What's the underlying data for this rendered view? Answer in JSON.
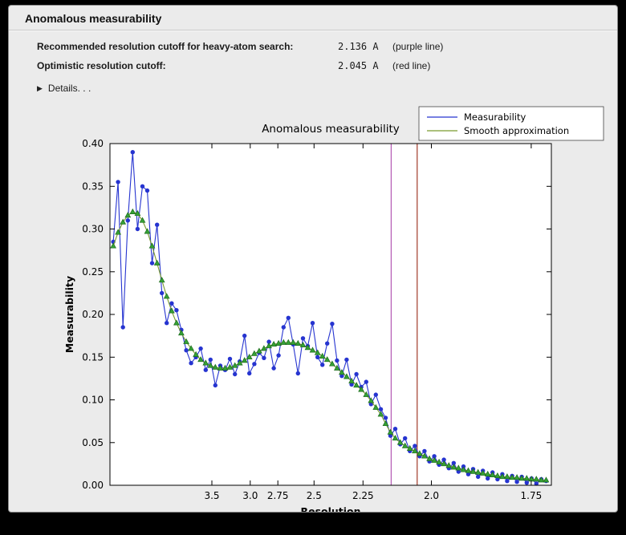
{
  "header": {
    "title": "Anomalous measurability"
  },
  "info": {
    "rows": [
      {
        "label": "Recommended resolution cutoff for heavy-atom search:",
        "value": "2.136 A",
        "note": "(purple line)"
      },
      {
        "label": "Optimistic resolution cutoff:",
        "value": "2.045 A",
        "note": "(red line)"
      }
    ],
    "details_label": "Details. . ."
  },
  "chart_data": {
    "type": "line",
    "title": "Anomalous measurability",
    "xlabel": "Resolution",
    "ylabel": "Measurability",
    "grid": false,
    "legend_position": "upper right",
    "xlim_inv_d_sq": [
      0.0035,
      0.342
    ],
    "ylim": [
      0,
      0.4
    ],
    "x_ticks": {
      "d_values": [
        3.5,
        3.0,
        2.75,
        2.5,
        2.25,
        2.0,
        1.75
      ],
      "labels": [
        "3.5",
        "3.0",
        "2.75",
        "2.5",
        "2.25",
        "2.0",
        "1.75"
      ]
    },
    "y_ticks": {
      "values": [
        0,
        0.05,
        0.1,
        0.15,
        0.2,
        0.25,
        0.3,
        0.35,
        0.4
      ],
      "labels": [
        "0.00",
        "0.05",
        "0.10",
        "0.15",
        "0.20",
        "0.25",
        "0.30",
        "0.35",
        "0.40"
      ]
    },
    "x_inv_d_sq": [
      0.006,
      0.0097,
      0.0135,
      0.0172,
      0.0209,
      0.0247,
      0.0284,
      0.0321,
      0.0358,
      0.0396,
      0.0433,
      0.047,
      0.0508,
      0.0545,
      0.0582,
      0.062,
      0.0657,
      0.0694,
      0.0731,
      0.0769,
      0.0806,
      0.0843,
      0.0881,
      0.0918,
      0.0955,
      0.0993,
      0.103,
      0.1067,
      0.1104,
      0.1142,
      0.1179,
      0.1216,
      0.1254,
      0.1291,
      0.1328,
      0.1366,
      0.1403,
      0.144,
      0.1477,
      0.1515,
      0.1552,
      0.1589,
      0.1627,
      0.1664,
      0.1701,
      0.1739,
      0.1776,
      0.1813,
      0.185,
      0.1888,
      0.1925,
      0.1962,
      0.2,
      0.2037,
      0.2074,
      0.2112,
      0.2149,
      0.2186,
      0.2223,
      0.2261,
      0.2298,
      0.2335,
      0.2373,
      0.241,
      0.2447,
      0.2485,
      0.2522,
      0.2559,
      0.2596,
      0.2634,
      0.2671,
      0.2708,
      0.2746,
      0.2783,
      0.282,
      0.2858,
      0.2895,
      0.2932,
      0.2969,
      0.3007,
      0.3044,
      0.3081,
      0.3119,
      0.3156,
      0.3193,
      0.3231,
      0.3268,
      0.3305,
      0.3343,
      0.338
    ],
    "series": [
      {
        "name": "Measurability",
        "color": "#2634d0",
        "marker": "circle",
        "values": [
          0.285,
          0.355,
          0.185,
          0.31,
          0.39,
          0.3,
          0.35,
          0.345,
          0.26,
          0.305,
          0.225,
          0.19,
          0.213,
          0.205,
          0.182,
          0.158,
          0.143,
          0.15,
          0.16,
          0.135,
          0.147,
          0.117,
          0.14,
          0.135,
          0.148,
          0.13,
          0.145,
          0.175,
          0.131,
          0.142,
          0.155,
          0.149,
          0.168,
          0.137,
          0.152,
          0.185,
          0.196,
          0.165,
          0.131,
          0.172,
          0.163,
          0.19,
          0.15,
          0.141,
          0.166,
          0.189,
          0.146,
          0.128,
          0.147,
          0.118,
          0.13,
          0.115,
          0.121,
          0.095,
          0.106,
          0.089,
          0.079,
          0.058,
          0.066,
          0.048,
          0.055,
          0.04,
          0.046,
          0.034,
          0.04,
          0.028,
          0.034,
          0.024,
          0.03,
          0.02,
          0.026,
          0.016,
          0.022,
          0.013,
          0.019,
          0.01,
          0.017,
          0.008,
          0.015,
          0.007,
          0.013,
          0.005,
          0.011,
          0.004,
          0.01,
          0.003,
          0.008,
          0.002,
          0.007,
          0.005
        ]
      },
      {
        "name": "Smooth approximation",
        "color": "#7a9a2e",
        "marker": "triangle",
        "marker_color": "#35a135",
        "marker_edge": "#1d6b1d",
        "values": [
          0.28,
          0.296,
          0.308,
          0.316,
          0.32,
          0.318,
          0.31,
          0.297,
          0.28,
          0.26,
          0.24,
          0.221,
          0.204,
          0.19,
          0.178,
          0.168,
          0.16,
          0.153,
          0.147,
          0.143,
          0.14,
          0.138,
          0.137,
          0.137,
          0.138,
          0.14,
          0.143,
          0.146,
          0.15,
          0.154,
          0.157,
          0.16,
          0.163,
          0.165,
          0.166,
          0.167,
          0.167,
          0.167,
          0.166,
          0.164,
          0.161,
          0.158,
          0.155,
          0.151,
          0.147,
          0.142,
          0.137,
          0.132,
          0.127,
          0.122,
          0.117,
          0.112,
          0.106,
          0.099,
          0.091,
          0.083,
          0.072,
          0.062,
          0.055,
          0.05,
          0.046,
          0.043,
          0.04,
          0.037,
          0.034,
          0.031,
          0.029,
          0.027,
          0.025,
          0.023,
          0.021,
          0.02,
          0.018,
          0.017,
          0.016,
          0.015,
          0.014,
          0.013,
          0.012,
          0.011,
          0.01,
          0.01,
          0.009,
          0.009,
          0.008,
          0.008,
          0.007,
          0.007,
          0.006,
          0.006
        ]
      }
    ],
    "vlines": [
      {
        "label": "purple line",
        "d": 2.136,
        "color": "#b45ab4"
      },
      {
        "label": "red line",
        "d": 2.045,
        "color": "#a03a28"
      }
    ],
    "legend_entries": [
      "Measurability",
      "Smooth approximation"
    ]
  }
}
